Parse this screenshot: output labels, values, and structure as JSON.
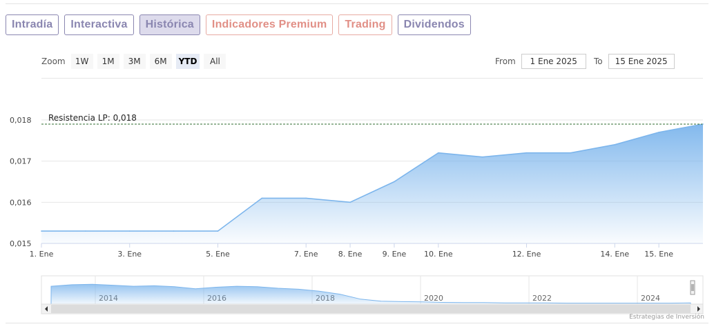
{
  "tabs": [
    {
      "label": "Intradía",
      "style": "purple"
    },
    {
      "label": "Interactiva",
      "style": "purple"
    },
    {
      "label": "Histórica",
      "style": "active"
    },
    {
      "label": "Indicadores Premium",
      "style": "salmon"
    },
    {
      "label": "Trading",
      "style": "salmon"
    },
    {
      "label": "Dividendos",
      "style": "purple"
    }
  ],
  "zoom": {
    "label": "Zoom",
    "buttons": [
      "1W",
      "1M",
      "3M",
      "6M",
      "YTD",
      "All"
    ],
    "selected": "YTD"
  },
  "range": {
    "from_label": "From",
    "from_value": "1 Ene 2025",
    "to_label": "To",
    "to_value": "15 Ene 2025"
  },
  "colors": {
    "line": "#7cb5ec",
    "area_top": "#7cb5ec",
    "resistance": "#2e6b2e",
    "tab_purple": "#8a86b0",
    "tab_salmon": "#e18f86"
  },
  "chart_data": {
    "type": "area",
    "x": [
      "1. Ene",
      "2. Ene",
      "3. Ene",
      "4. Ene",
      "5. Ene",
      "6. Ene",
      "7. Ene",
      "8. Ene",
      "9. Ene",
      "10. Ene",
      "11. Ene",
      "12. Ene",
      "13. Ene",
      "14. Ene",
      "15. Ene",
      "16. Ene"
    ],
    "values": [
      0.0153,
      0.0153,
      0.0153,
      0.0153,
      0.0153,
      0.0161,
      0.0161,
      0.016,
      0.0165,
      0.0172,
      0.0171,
      0.0172,
      0.0172,
      0.0174,
      0.0177,
      0.0179
    ],
    "x_tick_labels": [
      "1. Ene",
      "3. Ene",
      "5. Ene",
      "7. Ene",
      "8. Ene",
      "9. Ene",
      "10. Ene",
      "12. Ene",
      "14. Ene",
      "15. Ene"
    ],
    "y_ticks": [
      "0,015",
      "0,016",
      "0,017",
      "0,018"
    ],
    "y_tick_values": [
      0.015,
      0.016,
      0.017,
      0.018
    ],
    "ylim": [
      0.015,
      0.018
    ],
    "resistance": {
      "label": "Resistencia LP: 0,018",
      "value": 0.0179
    },
    "grid": true,
    "navigator": {
      "years": [
        "2014",
        "2016",
        "2018",
        "2020",
        "2022",
        "2024"
      ],
      "values": [
        0.72,
        0.78,
        0.8,
        0.76,
        0.72,
        0.74,
        0.7,
        0.62,
        0.68,
        0.72,
        0.7,
        0.64,
        0.6,
        0.52,
        0.4,
        0.2,
        0.12,
        0.1,
        0.09,
        0.07,
        0.06,
        0.06,
        0.05,
        0.05,
        0.05,
        0.04,
        0.04,
        0.04,
        0.04,
        0.04,
        0.04,
        0.05
      ]
    }
  },
  "credit": "Estrategias de Inversión"
}
